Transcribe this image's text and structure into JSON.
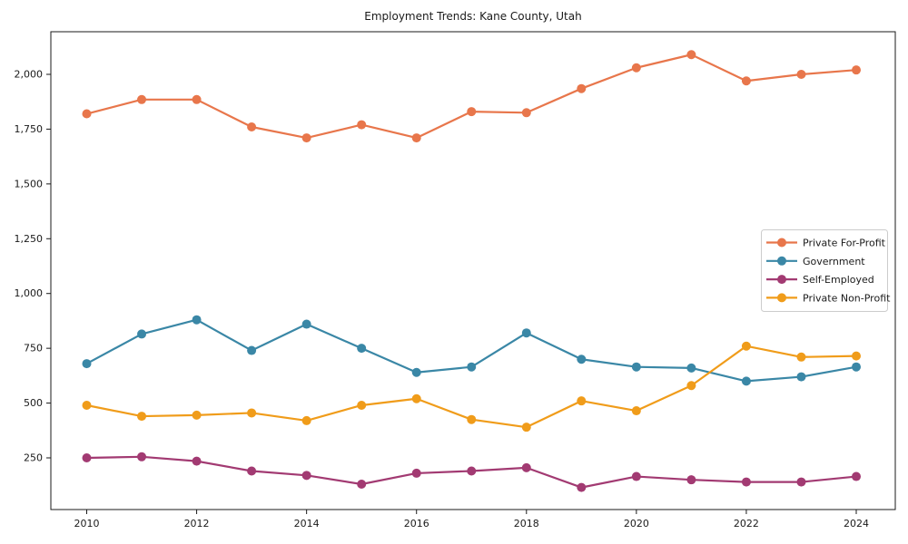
{
  "chart_data": {
    "type": "line",
    "title": "Employment Trends: Kane County, Utah",
    "xlabel": "",
    "ylabel": "",
    "x": [
      2010,
      2011,
      2012,
      2013,
      2014,
      2015,
      2016,
      2017,
      2018,
      2019,
      2020,
      2021,
      2022,
      2023,
      2024
    ],
    "x_ticks": [
      2010,
      2012,
      2014,
      2016,
      2018,
      2020,
      2022,
      2024
    ],
    "x_tick_labels": [
      "2010",
      "2012",
      "2014",
      "2016",
      "2018",
      "2020",
      "2022",
      "2024"
    ],
    "y_ticks": [
      250,
      500,
      750,
      1000,
      1250,
      1500,
      1750,
      2000
    ],
    "y_tick_labels": [
      "250",
      "500",
      "750",
      "1,000",
      "1,250",
      "1,500",
      "1,750",
      "2,000"
    ],
    "xlim": [
      2009.35,
      2024.71
    ],
    "ylim": [
      14,
      2194
    ],
    "grid": false,
    "legend_position": "center right",
    "marker": "circle",
    "series": [
      {
        "name": "Private For-Profit",
        "color": "#E8764B",
        "values": [
          1820,
          1885,
          1885,
          1760,
          1710,
          1770,
          1710,
          1830,
          1825,
          1935,
          2030,
          2090,
          1970,
          2000,
          2020
        ]
      },
      {
        "name": "Government",
        "color": "#3A87A6",
        "values": [
          680,
          815,
          880,
          740,
          860,
          750,
          640,
          665,
          820,
          700,
          665,
          660,
          600,
          620,
          665
        ]
      },
      {
        "name": "Self-Employed",
        "color": "#A23A72",
        "values": [
          250,
          255,
          235,
          190,
          170,
          130,
          180,
          190,
          205,
          115,
          165,
          150,
          140,
          140,
          165
        ]
      },
      {
        "name": "Private Non-Profit",
        "color": "#F09C1A",
        "values": [
          490,
          440,
          445,
          455,
          420,
          490,
          520,
          425,
          390,
          510,
          465,
          580,
          760,
          710,
          715
        ]
      }
    ]
  }
}
